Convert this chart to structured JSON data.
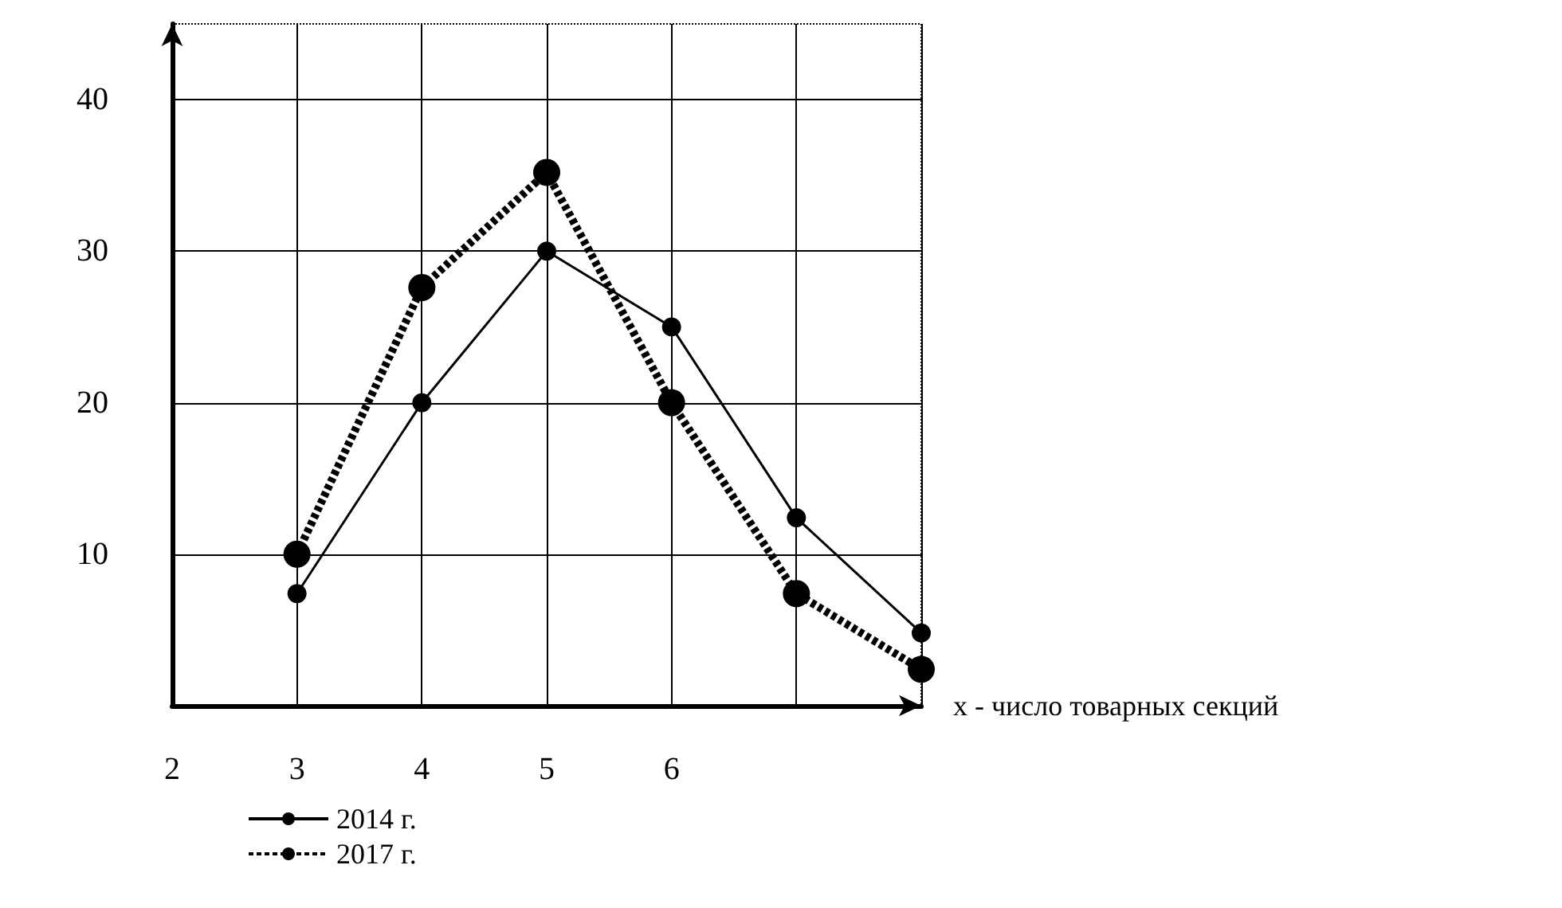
{
  "chart_data": {
    "type": "line",
    "xlabel": "x - число товарных секций",
    "x": [
      3,
      4,
      5,
      6,
      7,
      8
    ],
    "xlim": [
      2,
      8
    ],
    "xticks": [
      2,
      3,
      4,
      5,
      6,
      {
        "value": 7,
        "label": null
      },
      {
        "value": 8,
        "label": null
      }
    ],
    "ylim": [
      0,
      45
    ],
    "yticks": [
      10,
      20,
      30,
      40
    ],
    "series": [
      {
        "name": "2014 г.",
        "color": "#000000",
        "values": [
          7.4,
          20,
          30,
          25,
          12.4,
          4.8
        ],
        "line_style": "solid"
      },
      {
        "name": "2017 г.",
        "color": "#000000",
        "values": [
          10,
          27.6,
          35.2,
          20,
          7.4,
          2.4
        ],
        "line_style": "dotted"
      }
    ],
    "grid": true,
    "legend": "bottom left",
    "marker": "circle"
  }
}
